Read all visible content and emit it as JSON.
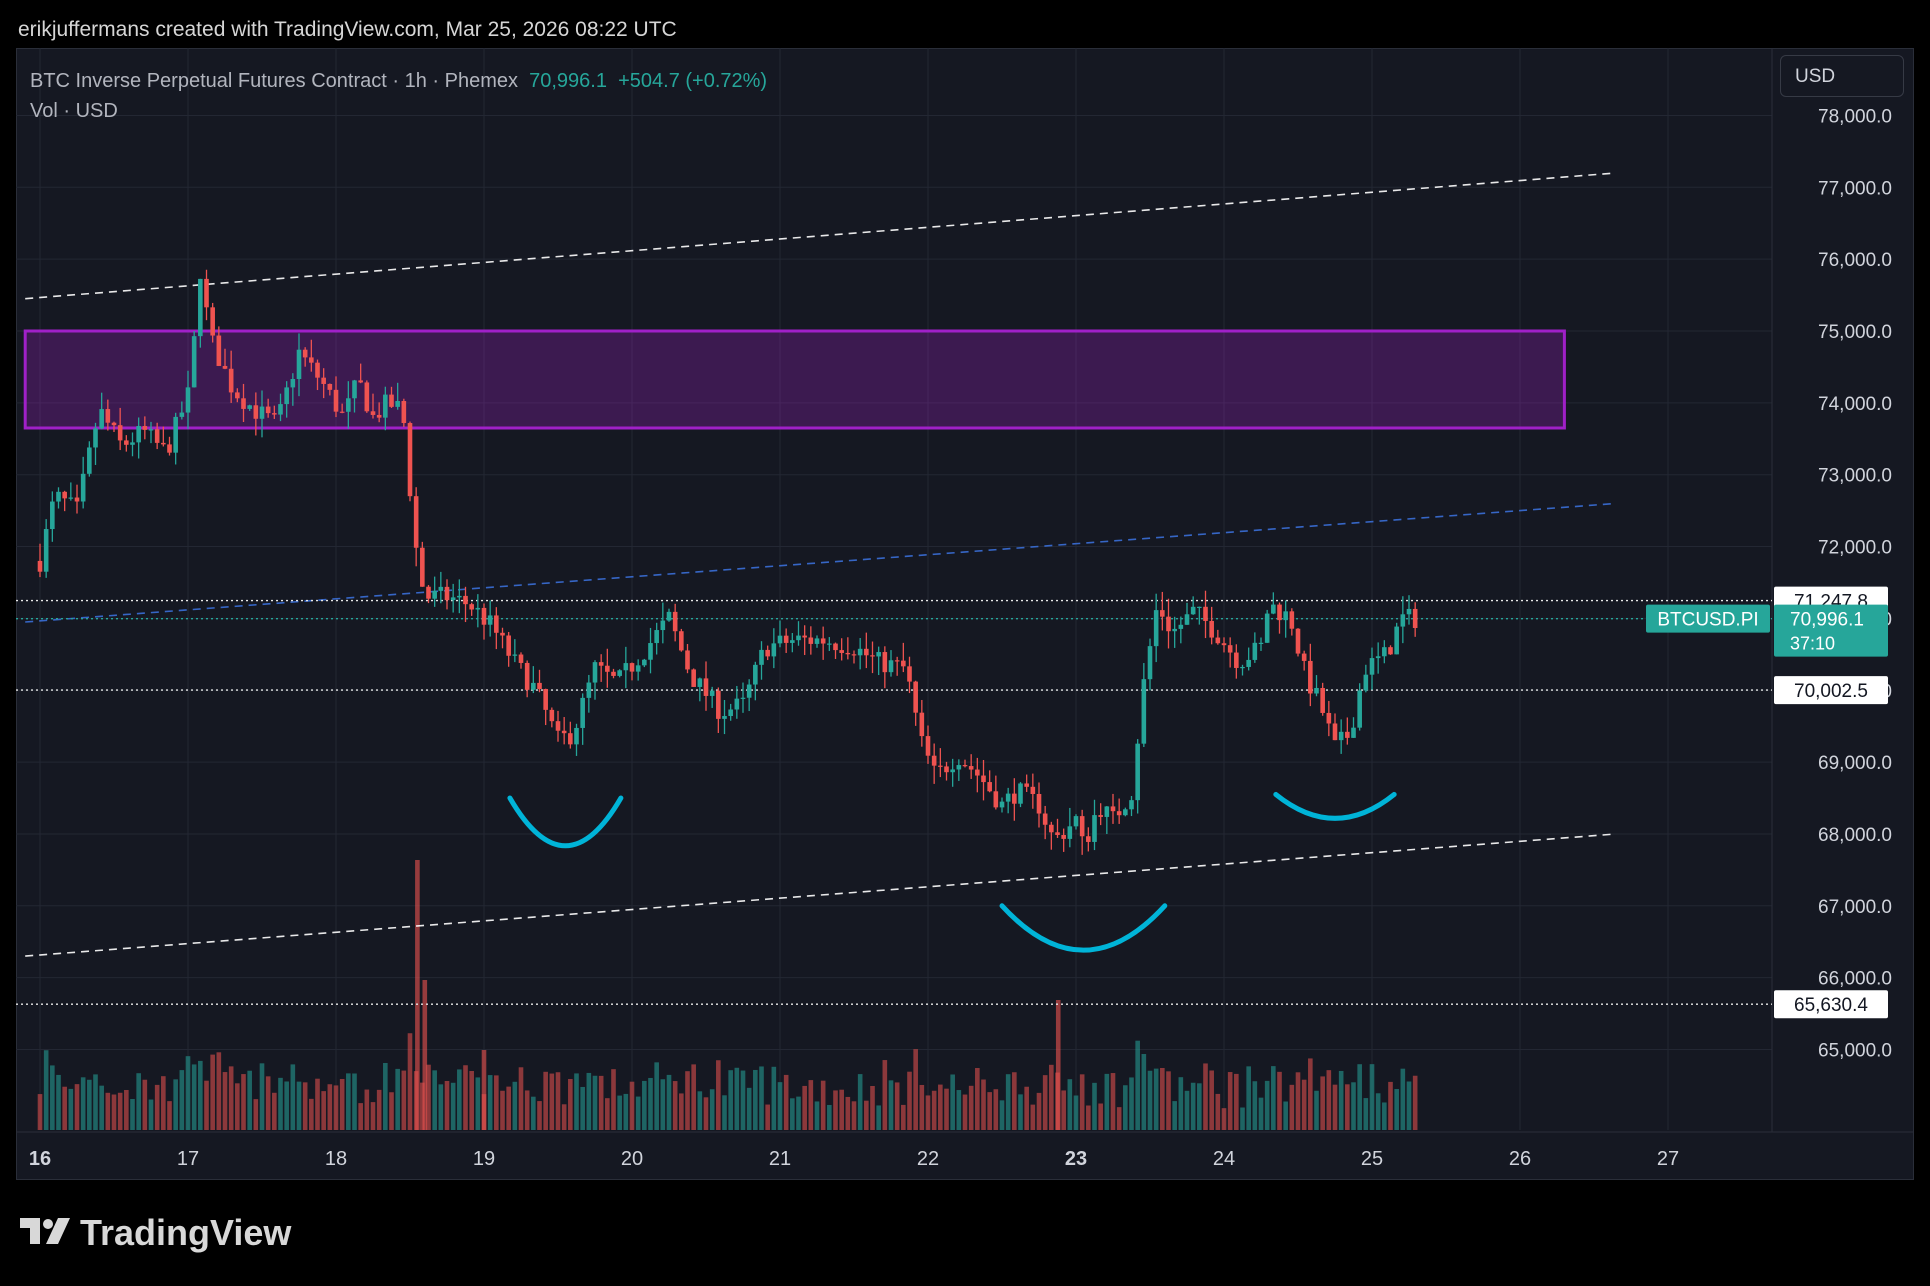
{
  "attribution": "erikjuffermans created with TradingView.com, Mar 25, 2026 08:22 UTC",
  "legend": {
    "symbol": "BTC Inverse Perpetual Futures Contract · 1h · Phemex",
    "price": "70,996.1",
    "change": "+504.7 (+0.72%)",
    "volume_line": "Vol · USD"
  },
  "currency_button": "USD",
  "brand": "TradingView",
  "colors": {
    "up": "#26a69a",
    "down": "#ef5350",
    "zone": "#a020c8",
    "arcs": "#00b4d8",
    "channel": "#ffffff",
    "mid_channel": "#3a6fd8"
  },
  "chart_data": {
    "type": "candlestick",
    "timeframe": "1h",
    "y_axis": {
      "range": [
        64000,
        78500
      ],
      "ticks": [
        "78,000.0",
        "77,000.0",
        "76,000.0",
        "75,000.0",
        "74,000.0",
        "73,000.0",
        "72,000.0",
        "71,000.0",
        "70,000.0",
        "69,000.0",
        "68,000.0",
        "67,000.0",
        "66,000.0",
        "65,000.0"
      ],
      "tick_values": [
        78000,
        77000,
        76000,
        75000,
        74000,
        73000,
        72000,
        71000,
        70000,
        69000,
        68000,
        67000,
        66000,
        65000
      ]
    },
    "x_axis": {
      "range": [
        15.9,
        27.7
      ],
      "labels": [
        "16",
        "17",
        "18",
        "19",
        "20",
        "21",
        "22",
        "23",
        "24",
        "25",
        "26",
        "27"
      ],
      "label_values": [
        16,
        17,
        18,
        19,
        20,
        21,
        22,
        23,
        24,
        25,
        26,
        27
      ]
    },
    "price_waypoints": [
      [
        16.0,
        71800
      ],
      [
        16.1,
        72700
      ],
      [
        16.25,
        72500
      ],
      [
        16.4,
        73900
      ],
      [
        16.55,
        73400
      ],
      [
        16.7,
        73600
      ],
      [
        16.85,
        73300
      ],
      [
        17.0,
        74100
      ],
      [
        17.05,
        75000
      ],
      [
        17.08,
        75900
      ],
      [
        17.15,
        74900
      ],
      [
        17.3,
        74200
      ],
      [
        17.45,
        73900
      ],
      [
        17.6,
        73700
      ],
      [
        17.75,
        74700
      ],
      [
        17.9,
        74300
      ],
      [
        18.05,
        73800
      ],
      [
        18.15,
        74300
      ],
      [
        18.25,
        73800
      ],
      [
        18.35,
        74000
      ],
      [
        18.45,
        73900
      ],
      [
        18.5,
        72800
      ],
      [
        18.55,
        71800
      ],
      [
        18.6,
        71300
      ],
      [
        18.75,
        71300
      ],
      [
        18.9,
        71200
      ],
      [
        19.05,
        70900
      ],
      [
        19.2,
        70400
      ],
      [
        19.35,
        70000
      ],
      [
        19.5,
        69300
      ],
      [
        19.6,
        69400
      ],
      [
        19.75,
        70300
      ],
      [
        19.9,
        70100
      ],
      [
        20.1,
        70600
      ],
      [
        20.25,
        71000
      ],
      [
        20.4,
        70200
      ],
      [
        20.6,
        69700
      ],
      [
        20.75,
        69800
      ],
      [
        20.9,
        70600
      ],
      [
        21.1,
        70700
      ],
      [
        21.3,
        70700
      ],
      [
        21.5,
        70600
      ],
      [
        21.65,
        70400
      ],
      [
        21.85,
        70300
      ],
      [
        21.95,
        69300
      ],
      [
        22.05,
        68800
      ],
      [
        22.2,
        69100
      ],
      [
        22.35,
        68800
      ],
      [
        22.5,
        68400
      ],
      [
        22.6,
        68600
      ],
      [
        22.75,
        68400
      ],
      [
        22.85,
        67900
      ],
      [
        23.0,
        68200
      ],
      [
        23.05,
        67800
      ],
      [
        23.15,
        68400
      ],
      [
        23.25,
        68200
      ],
      [
        23.38,
        68600
      ],
      [
        23.45,
        70000
      ],
      [
        23.55,
        71200
      ],
      [
        23.65,
        70800
      ],
      [
        23.8,
        71100
      ],
      [
        23.95,
        70800
      ],
      [
        24.1,
        70400
      ],
      [
        24.25,
        70600
      ],
      [
        24.3,
        71200
      ],
      [
        24.45,
        71000
      ],
      [
        24.55,
        70200
      ],
      [
        24.65,
        69800
      ],
      [
        24.75,
        69200
      ],
      [
        24.85,
        69400
      ],
      [
        24.95,
        70300
      ],
      [
        25.1,
        70500
      ],
      [
        25.2,
        71000
      ],
      [
        25.3,
        70996
      ]
    ],
    "volume_panel": {
      "max_label": "volume",
      "unit": "USD"
    },
    "price_labels": [
      {
        "text": "71,247.8",
        "value": 71247.8,
        "style": "white"
      },
      {
        "text": "70,996.1",
        "value": 70996.1,
        "style": "current"
      },
      {
        "text": "37:10",
        "value": 70996.1,
        "style": "countdown"
      },
      {
        "text": "70,002.5",
        "value": 70002.5,
        "style": "white"
      },
      {
        "text": "65,630.4",
        "value": 65630.4,
        "style": "white"
      }
    ],
    "symbol_tag": "BTCUSD.PI",
    "horizontal_lines": [
      71247.8,
      70996.1,
      70002.5,
      65630.4
    ],
    "supply_zone": {
      "x": [
        15.9,
        26.3
      ],
      "y": [
        73650,
        75000
      ]
    },
    "channel_lines": [
      {
        "name": "upper",
        "from": [
          15.9,
          75450
        ],
        "to": [
          26.65,
          77200
        ],
        "style": "dashed-white"
      },
      {
        "name": "middle",
        "from": [
          15.9,
          70950
        ],
        "to": [
          26.65,
          72600
        ],
        "style": "dashed-blue"
      },
      {
        "name": "lower",
        "from": [
          15.9,
          66300
        ],
        "to": [
          26.65,
          68000
        ],
        "style": "dashed-white"
      }
    ],
    "arcs": [
      {
        "name": "left-shoulder",
        "center": [
          19.55,
          68500
        ],
        "width": 0.75,
        "depth": 700
      },
      {
        "name": "head",
        "center": [
          23.05,
          67000
        ],
        "width": 1.1,
        "depth": 650
      },
      {
        "name": "right-shoulder",
        "center": [
          24.75,
          68550
        ],
        "width": 0.8,
        "depth": 350
      }
    ]
  }
}
